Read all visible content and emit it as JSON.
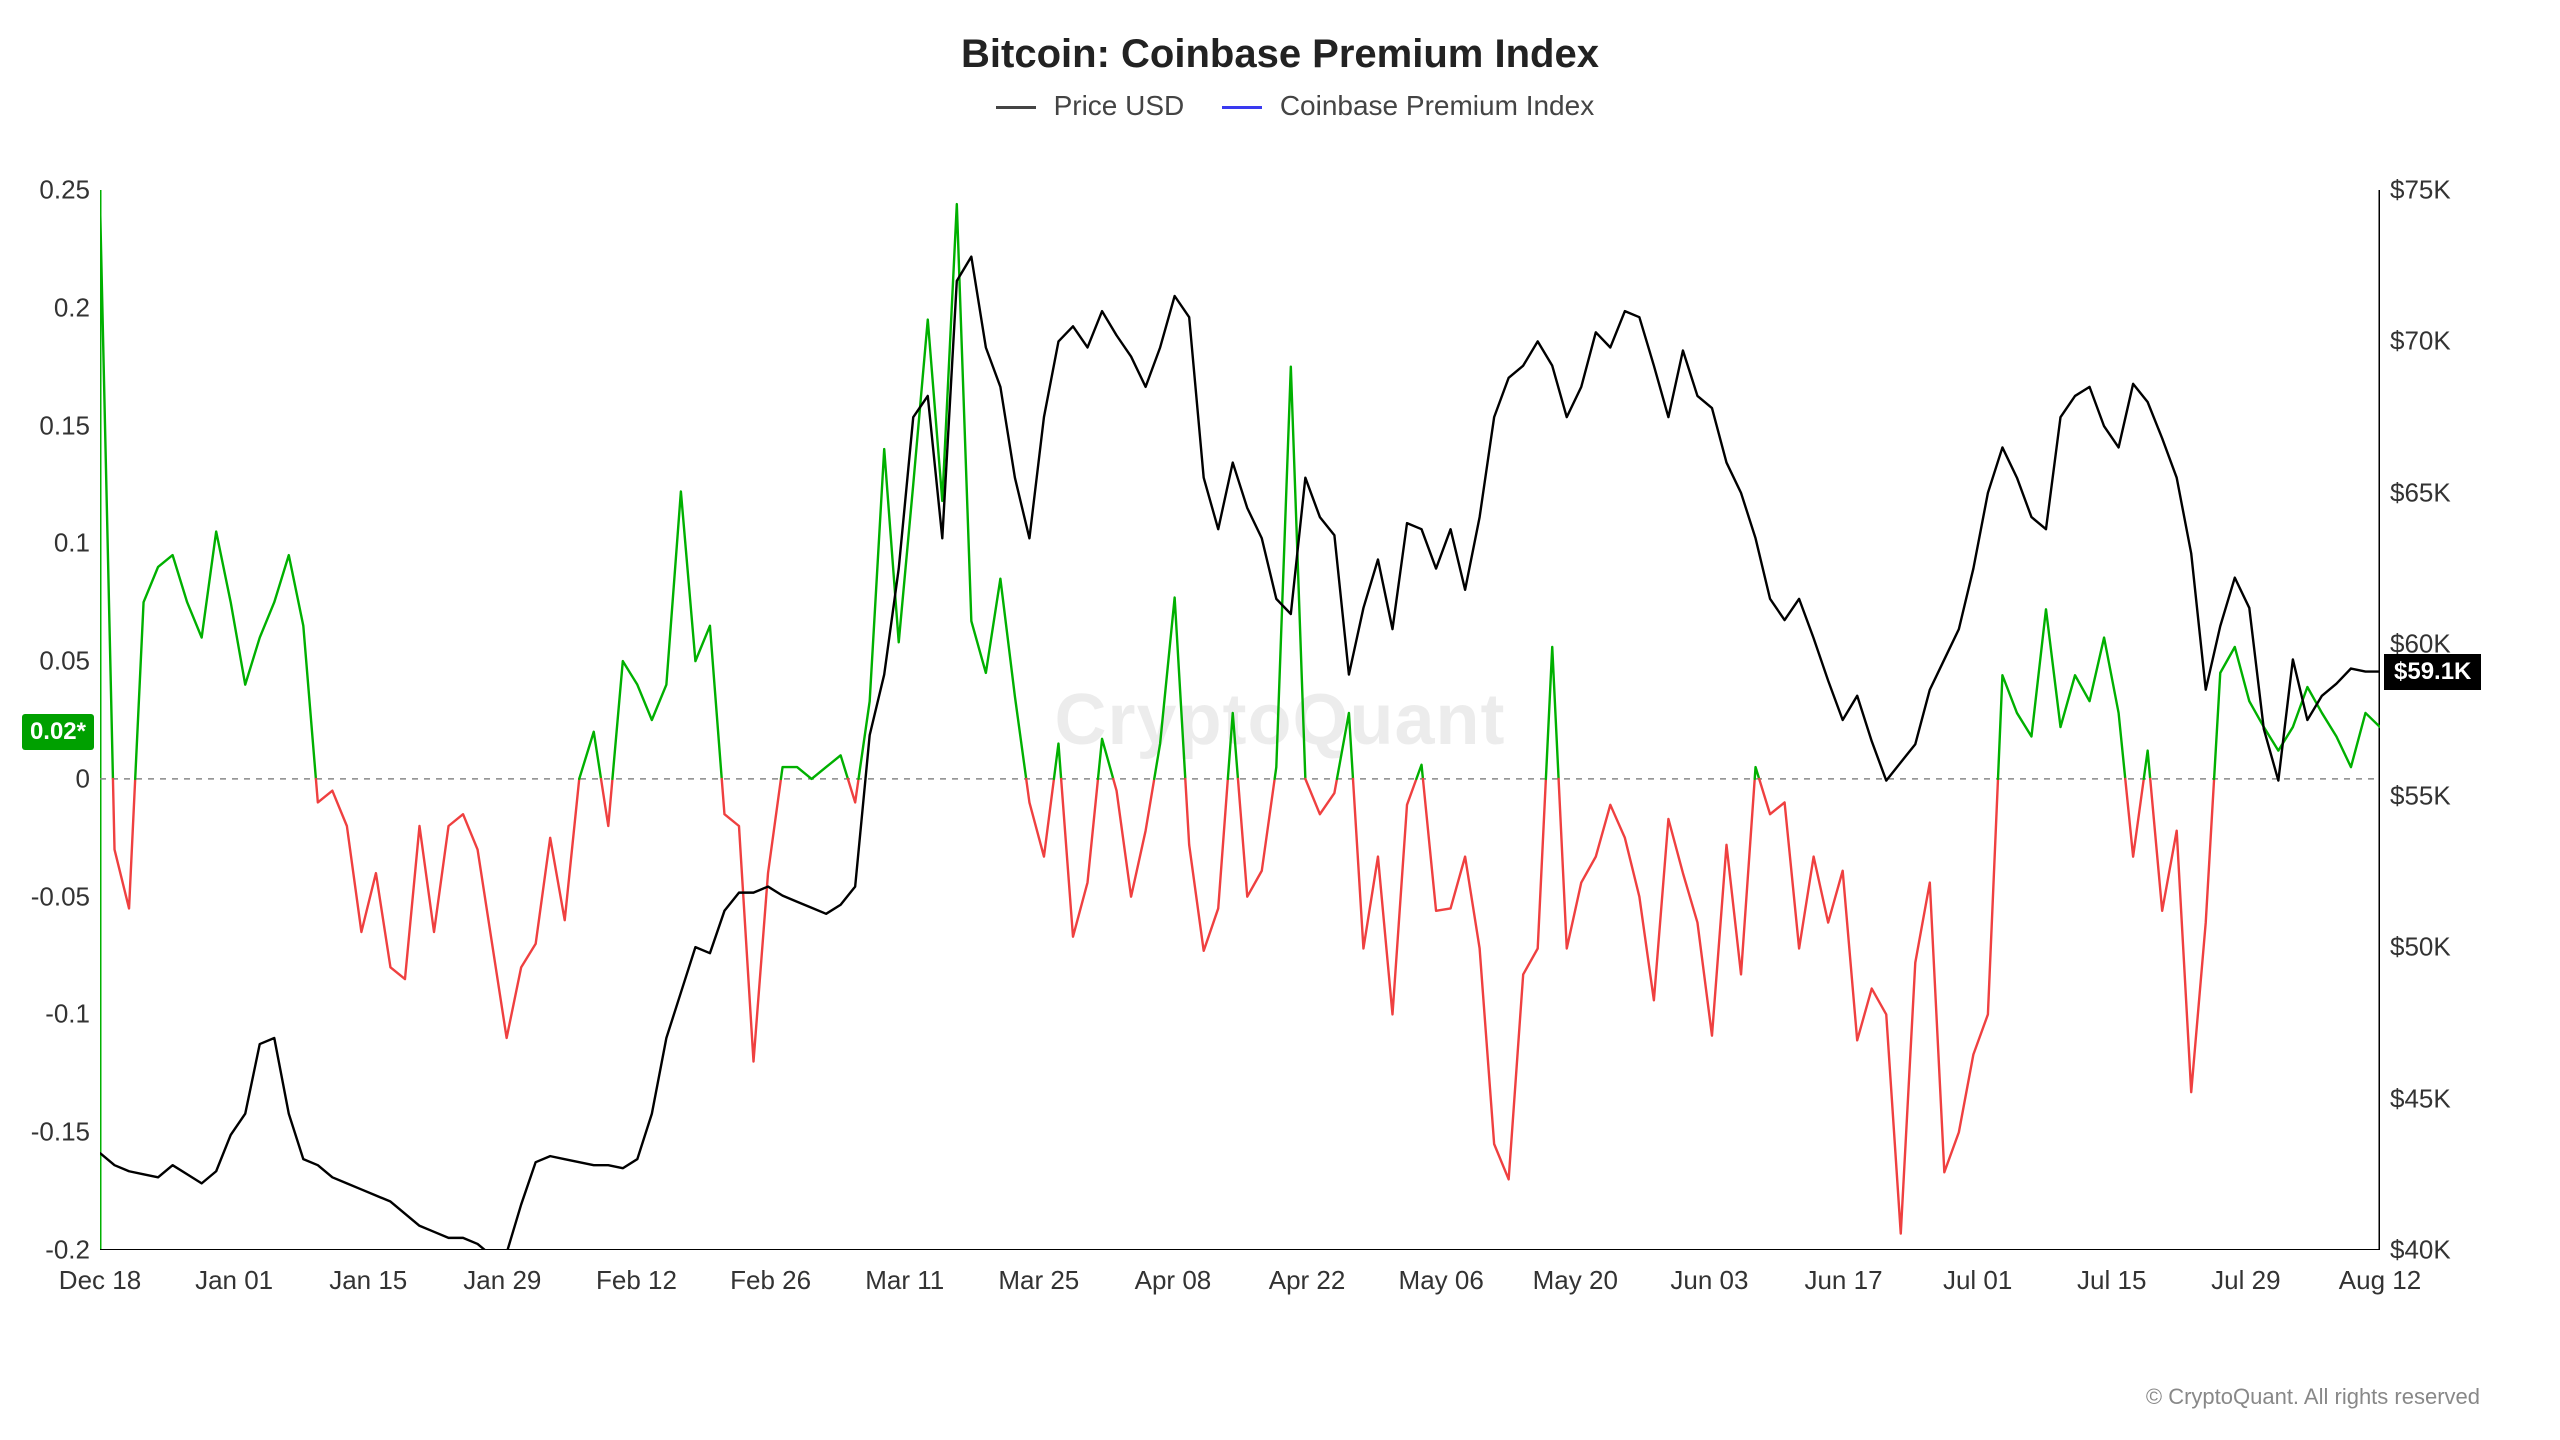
{
  "title": "Bitcoin: Coinbase Premium Index",
  "legend": {
    "series1": {
      "label": "Price USD",
      "color": "#444444"
    },
    "series2": {
      "label": "Coinbase Premium Index",
      "color": "#3a3af0"
    }
  },
  "watermark": "CryptoQuant",
  "copyright": "© CryptoQuant. All rights reserved",
  "plot": {
    "background": "#ffffff",
    "grid_color": "#bbbbbb",
    "zero_line_color": "#888888",
    "left_axis": {
      "min": -0.2,
      "max": 0.25,
      "step": 0.05,
      "labels": [
        "-0.2",
        "-0.15",
        "-0.1",
        "-0.05",
        "0",
        "0.05",
        "0.1",
        "0.15",
        "0.2",
        "0.25"
      ]
    },
    "right_axis": {
      "min": 40000,
      "max": 75000,
      "step": 5000,
      "labels": [
        "$40K",
        "$45K",
        "$50K",
        "$55K",
        "$60K",
        "$65K",
        "$70K",
        "$75K"
      ]
    },
    "x_axis": {
      "labels": [
        "Dec 18",
        "Jan 01",
        "Jan 15",
        "Jan 29",
        "Feb 12",
        "Feb 26",
        "Mar 11",
        "Mar 25",
        "Apr 08",
        "Apr 22",
        "May 06",
        "May 20",
        "Jun 03",
        "Jun 17",
        "Jul 01",
        "Jul 15",
        "Jul 29",
        "Aug 12"
      ]
    },
    "current_left_badge": "0.02*",
    "current_right_badge": "$59.1K",
    "current_right_value": 59100,
    "current_left_value": 0.02,
    "series_price": {
      "color": "#000000",
      "stroke_width": 2.4,
      "data": [
        43200,
        42800,
        42600,
        42500,
        42400,
        42800,
        42500,
        42200,
        42600,
        43800,
        44500,
        46800,
        47000,
        44500,
        43000,
        42800,
        42400,
        42200,
        42000,
        41800,
        41600,
        41200,
        40800,
        40600,
        40400,
        40400,
        40200,
        39800,
        39900,
        41500,
        42900,
        43100,
        43000,
        42900,
        42800,
        42800,
        42700,
        43000,
        44500,
        47000,
        48500,
        50000,
        49800,
        51200,
        51800,
        51800,
        52000,
        51700,
        51500,
        51300,
        51100,
        51400,
        52000,
        57000,
        59000,
        62500,
        67500,
        68200,
        63500,
        72000,
        72800,
        69800,
        68500,
        65500,
        63500,
        67500,
        70000,
        70500,
        69800,
        71000,
        70200,
        69500,
        68500,
        69800,
        71500,
        70800,
        65500,
        63800,
        66000,
        64500,
        63500,
        61500,
        61000,
        65500,
        64200,
        63600,
        59000,
        61200,
        62800,
        60500,
        64000,
        63800,
        62500,
        63800,
        61800,
        64200,
        67500,
        68800,
        69200,
        70000,
        69200,
        67500,
        68500,
        70300,
        69800,
        71000,
        70800,
        69200,
        67500,
        69700,
        68200,
        67800,
        66000,
        65000,
        63500,
        61500,
        60800,
        61500,
        60200,
        58800,
        57500,
        58300,
        56800,
        55500,
        56100,
        56700,
        58500,
        59500,
        60500,
        62500,
        65000,
        66500,
        65500,
        64200,
        63800,
        67500,
        68200,
        68500,
        67200,
        66500,
        68600,
        68000,
        66800,
        65500,
        63000,
        58500,
        60600,
        62200,
        61200,
        57200,
        55500,
        59500,
        57500,
        58300,
        58700,
        59200,
        59100,
        59100
      ]
    },
    "series_premium": {
      "color_pos": "#00b000",
      "color_neg": "#ef4040",
      "stroke_width": 2.4,
      "data": [
        0.245,
        -0.03,
        -0.055,
        0.075,
        0.09,
        0.095,
        0.075,
        0.06,
        0.105,
        0.075,
        0.04,
        0.06,
        0.075,
        0.095,
        0.065,
        -0.01,
        -0.005,
        -0.02,
        -0.065,
        -0.04,
        -0.08,
        -0.085,
        -0.02,
        -0.065,
        -0.02,
        -0.015,
        -0.03,
        -0.07,
        -0.11,
        -0.08,
        -0.07,
        -0.025,
        -0.06,
        0.0,
        0.02,
        -0.02,
        0.05,
        0.04,
        0.025,
        0.04,
        0.122,
        0.05,
        0.065,
        -0.015,
        -0.02,
        -0.12,
        -0.04,
        0.005,
        0.005,
        0.0,
        0.005,
        0.01,
        -0.01,
        0.033,
        0.14,
        0.058,
        0.125,
        0.195,
        0.118,
        0.244,
        0.067,
        0.045,
        0.085,
        0.035,
        -0.01,
        -0.033,
        0.015,
        -0.067,
        -0.044,
        0.017,
        -0.005,
        -0.05,
        -0.022,
        0.015,
        0.077,
        -0.028,
        -0.073,
        -0.055,
        0.028,
        -0.05,
        -0.039,
        0.005,
        0.175,
        0.0,
        -0.015,
        -0.006,
        0.028,
        -0.072,
        -0.033,
        -0.1,
        -0.011,
        0.006,
        -0.056,
        -0.055,
        -0.033,
        -0.072,
        -0.155,
        -0.17,
        -0.083,
        -0.072,
        0.056,
        -0.072,
        -0.044,
        -0.033,
        -0.011,
        -0.025,
        -0.05,
        -0.094,
        -0.017,
        -0.04,
        -0.061,
        -0.109,
        -0.028,
        -0.083,
        0.005,
        -0.015,
        -0.01,
        -0.072,
        -0.033,
        -0.061,
        -0.039,
        -0.111,
        -0.089,
        -0.1,
        -0.193,
        -0.078,
        -0.044,
        -0.167,
        -0.15,
        -0.117,
        -0.1,
        0.044,
        0.028,
        0.018,
        0.072,
        0.022,
        0.044,
        0.033,
        0.06,
        0.028,
        -0.033,
        0.012,
        -0.056,
        -0.022,
        -0.133,
        -0.061,
        0.045,
        0.056,
        0.033,
        0.022,
        0.012,
        0.022,
        0.039,
        0.028,
        0.018,
        0.005,
        0.028,
        0.022
      ]
    }
  },
  "fonts": {
    "title_size": 40,
    "legend_size": 28,
    "tick_size": 26,
    "badge_size": 24
  },
  "colors": {
    "axis": "#333333",
    "grid": "#bbbbbb"
  }
}
